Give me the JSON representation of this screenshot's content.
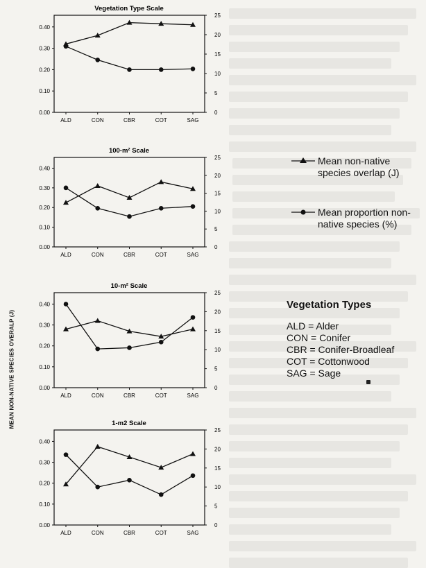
{
  "y_axis_title": "MEAN NON-NATIVE SPECIES OVERALP (J)",
  "legend": [
    {
      "label_line1": "Mean non-native",
      "label_line2": "species overlap (J)",
      "marker": "triangle"
    },
    {
      "label_line1": "Mean proportion non-",
      "label_line2": "native species (%)",
      "marker": "circle"
    }
  ],
  "vegetation_types": {
    "title": "Vegetation Types",
    "items": [
      "ALD = Alder",
      "CON = Conifer",
      "CBR = Conifer-Broadleaf",
      "COT = Cottonwood",
      "SAG = Sage"
    ]
  },
  "chart_data": [
    {
      "type": "line",
      "title": "Vegetation Type Scale",
      "categories": [
        "ALD",
        "CON",
        "CBR",
        "COT",
        "SAG"
      ],
      "ylim_left": [
        0,
        0.4
      ],
      "ylim_right": [
        0,
        25
      ],
      "left_ticks": [
        "0.00",
        "0.10",
        "0.20",
        "0.30",
        "0.40"
      ],
      "right_ticks": [
        "0",
        "5",
        "10",
        "15",
        "20",
        "25"
      ],
      "series": [
        {
          "name": "Mean non-native species overlap (J)",
          "axis": "left",
          "marker": "triangle",
          "values": [
            0.32,
            0.36,
            0.42,
            0.415,
            0.41
          ]
        },
        {
          "name": "Mean proportion non-native species (%)",
          "axis": "right",
          "marker": "circle",
          "values": [
            17,
            13.5,
            11,
            11,
            11.2
          ]
        }
      ]
    },
    {
      "type": "line",
      "title": "100-m² Scale",
      "categories": [
        "ALD",
        "CON",
        "CBR",
        "COT",
        "SAG"
      ],
      "ylim_left": [
        0,
        0.4
      ],
      "ylim_right": [
        0,
        25
      ],
      "left_ticks": [
        "0.00",
        "0.10",
        "0.20",
        "0.30",
        "0.40"
      ],
      "right_ticks": [
        "0",
        "5",
        "10",
        "15",
        "20",
        "25"
      ],
      "series": [
        {
          "name": "Mean non-native species overlap (J)",
          "axis": "left",
          "marker": "triangle",
          "values": [
            0.225,
            0.31,
            0.25,
            0.33,
            0.295
          ]
        },
        {
          "name": "Mean proportion non-native species (%)",
          "axis": "right",
          "marker": "circle",
          "values": [
            16.5,
            10.8,
            8.5,
            10.8,
            11.3
          ]
        }
      ]
    },
    {
      "type": "line",
      "title": "10-m² Scale",
      "categories": [
        "ALD",
        "CON",
        "CBR",
        "COT",
        "SAG"
      ],
      "ylim_left": [
        0,
        0.4
      ],
      "ylim_right": [
        0,
        25
      ],
      "left_ticks": [
        "0.00",
        "0.10",
        "0.20",
        "0.30",
        "0.40"
      ],
      "right_ticks": [
        "0",
        "5",
        "10",
        "15",
        "20",
        "25"
      ],
      "series": [
        {
          "name": "Mean non-native species overlap (J)",
          "axis": "left",
          "marker": "triangle",
          "values": [
            0.28,
            0.32,
            0.27,
            0.245,
            0.28
          ]
        },
        {
          "name": "Mean proportion non-native species (%)",
          "axis": "right",
          "marker": "circle",
          "values": [
            22,
            10.2,
            10.5,
            12,
            18.5
          ]
        }
      ]
    },
    {
      "type": "line",
      "title": "1-m2 Scale",
      "categories": [
        "ALD",
        "CON",
        "CBR",
        "COT",
        "SAG"
      ],
      "ylim_left": [
        0,
        0.4
      ],
      "ylim_right": [
        0,
        25
      ],
      "left_ticks": [
        "0.00",
        "0.10",
        "0.20",
        "0.30",
        "0.40"
      ],
      "right_ticks": [
        "0",
        "5",
        "10",
        "15",
        "20",
        "25"
      ],
      "series": [
        {
          "name": "Mean non-native species overlap (J)",
          "axis": "left",
          "marker": "triangle",
          "values": [
            0.195,
            0.375,
            0.325,
            0.275,
            0.34
          ]
        },
        {
          "name": "Mean proportion non-native species (%)",
          "axis": "right",
          "marker": "circle",
          "values": [
            18.5,
            10,
            11.8,
            8,
            13
          ]
        }
      ]
    }
  ]
}
